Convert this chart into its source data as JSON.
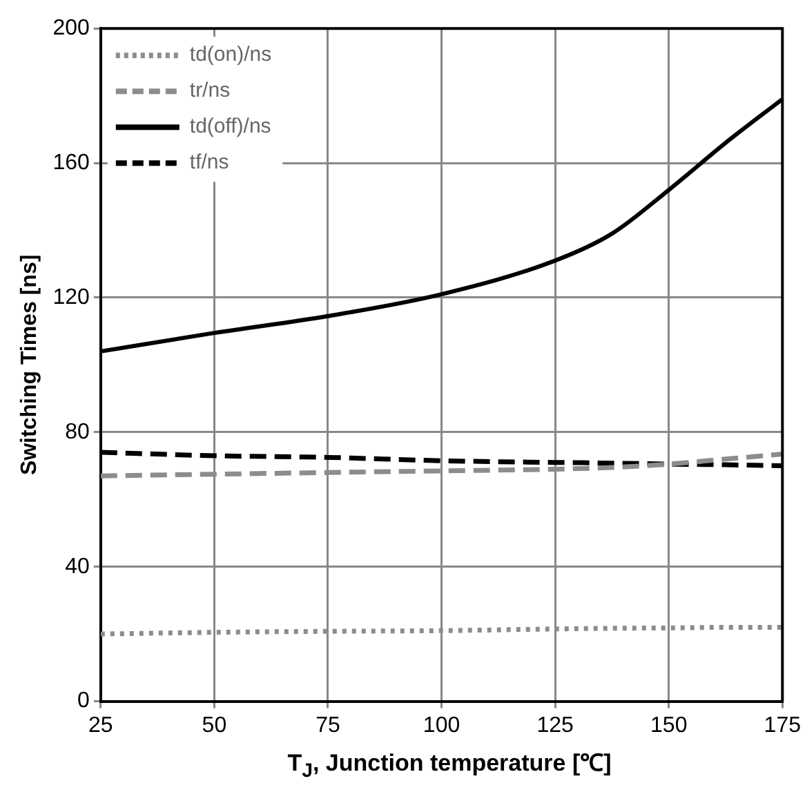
{
  "chart_data": {
    "type": "line",
    "xlabel": "T$_{J}$, Junction temperature [℃]",
    "ylabel": "Switching Times [ns]",
    "x": [
      25,
      50,
      75,
      100,
      125,
      137.5,
      150,
      162.5,
      175
    ],
    "series": [
      {
        "name": "td(on)/ns",
        "color": "#8c8c8c",
        "line_style": "dotted",
        "values": [
          20,
          20.5,
          20.8,
          21,
          21.5,
          21.7,
          21.8,
          22,
          22
        ]
      },
      {
        "name": "tr/ns",
        "color": "#8c8c8c",
        "line_style": "dashed",
        "values": [
          67,
          67.5,
          68,
          68.5,
          69,
          69.5,
          70.5,
          72,
          73.5
        ]
      },
      {
        "name": "td(off)/ns",
        "color": "#000000",
        "line_style": "solid",
        "values": [
          104,
          109.5,
          114.5,
          121,
          131,
          139,
          152,
          166,
          179
        ]
      },
      {
        "name": "tf/ns",
        "color": "#000000",
        "line_style": "dashed",
        "values": [
          74,
          73,
          72.5,
          71.5,
          71,
          70.8,
          70.5,
          70.3,
          70
        ]
      }
    ],
    "xlim": [
      25,
      175
    ],
    "xticks": [
      25,
      50,
      75,
      100,
      125,
      150,
      175
    ],
    "ylim": [
      0,
      200
    ],
    "yticks": [
      0,
      40,
      80,
      120,
      160,
      200
    ],
    "grid": true,
    "legend": "top left",
    "marker": "none"
  }
}
